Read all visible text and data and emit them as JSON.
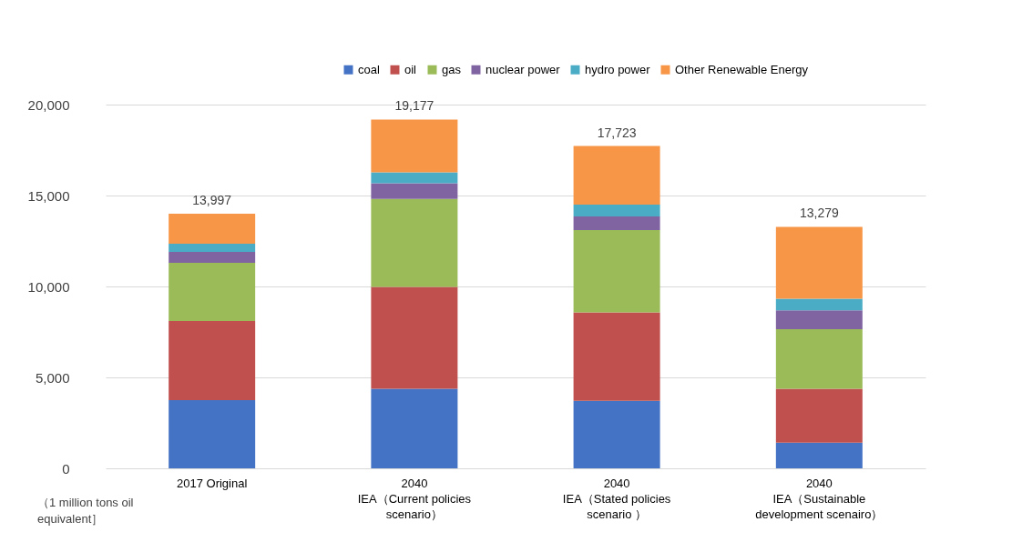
{
  "chart_data": {
    "type": "bar",
    "stacked": true,
    "categories": [
      "2017 Original",
      "2040\nIEA（Current policies\nscenario）",
      "2040\nIEA（Stated policies\nscenario ）",
      "2040\nIEA（Sustainable\ndevelopment scenairo）"
    ],
    "ylabel": "（1 million tons oil equivalent］",
    "series": [
      {
        "name": "coal",
        "color": "#4472c4",
        "values": [
          3750,
          4380,
          3710,
          1410
        ]
      },
      {
        "name": "oil",
        "color": "#c0504d",
        "values": [
          4350,
          5600,
          4860,
          2970
        ]
      },
      {
        "name": "gas",
        "color": "#9bbb59",
        "values": [
          3200,
          4830,
          4530,
          3270
        ]
      },
      {
        "name": "nuclear power",
        "color": "#8064a2",
        "values": [
          600,
          870,
          750,
          1040
        ]
      },
      {
        "name": "hydro power",
        "color": "#4bacc6",
        "values": [
          450,
          590,
          650,
          640
        ]
      },
      {
        "name": "Other Renewable Energy",
        "color": "#f79646",
        "values": [
          1647,
          2907,
          3223,
          3949
        ]
      }
    ],
    "totals": [
      "13,997",
      "19,177",
      "17,723",
      "13,279"
    ],
    "ylim": [
      0,
      20000
    ],
    "yticks": [
      0,
      {
        "value": 5000,
        "label": "5,000"
      },
      {
        "value": 10000,
        "label": "10,000"
      },
      {
        "value": 15000,
        "label": "15,000"
      },
      {
        "value": 20000,
        "label": "20,000"
      }
    ],
    "grid": "y",
    "legend": "top right"
  }
}
